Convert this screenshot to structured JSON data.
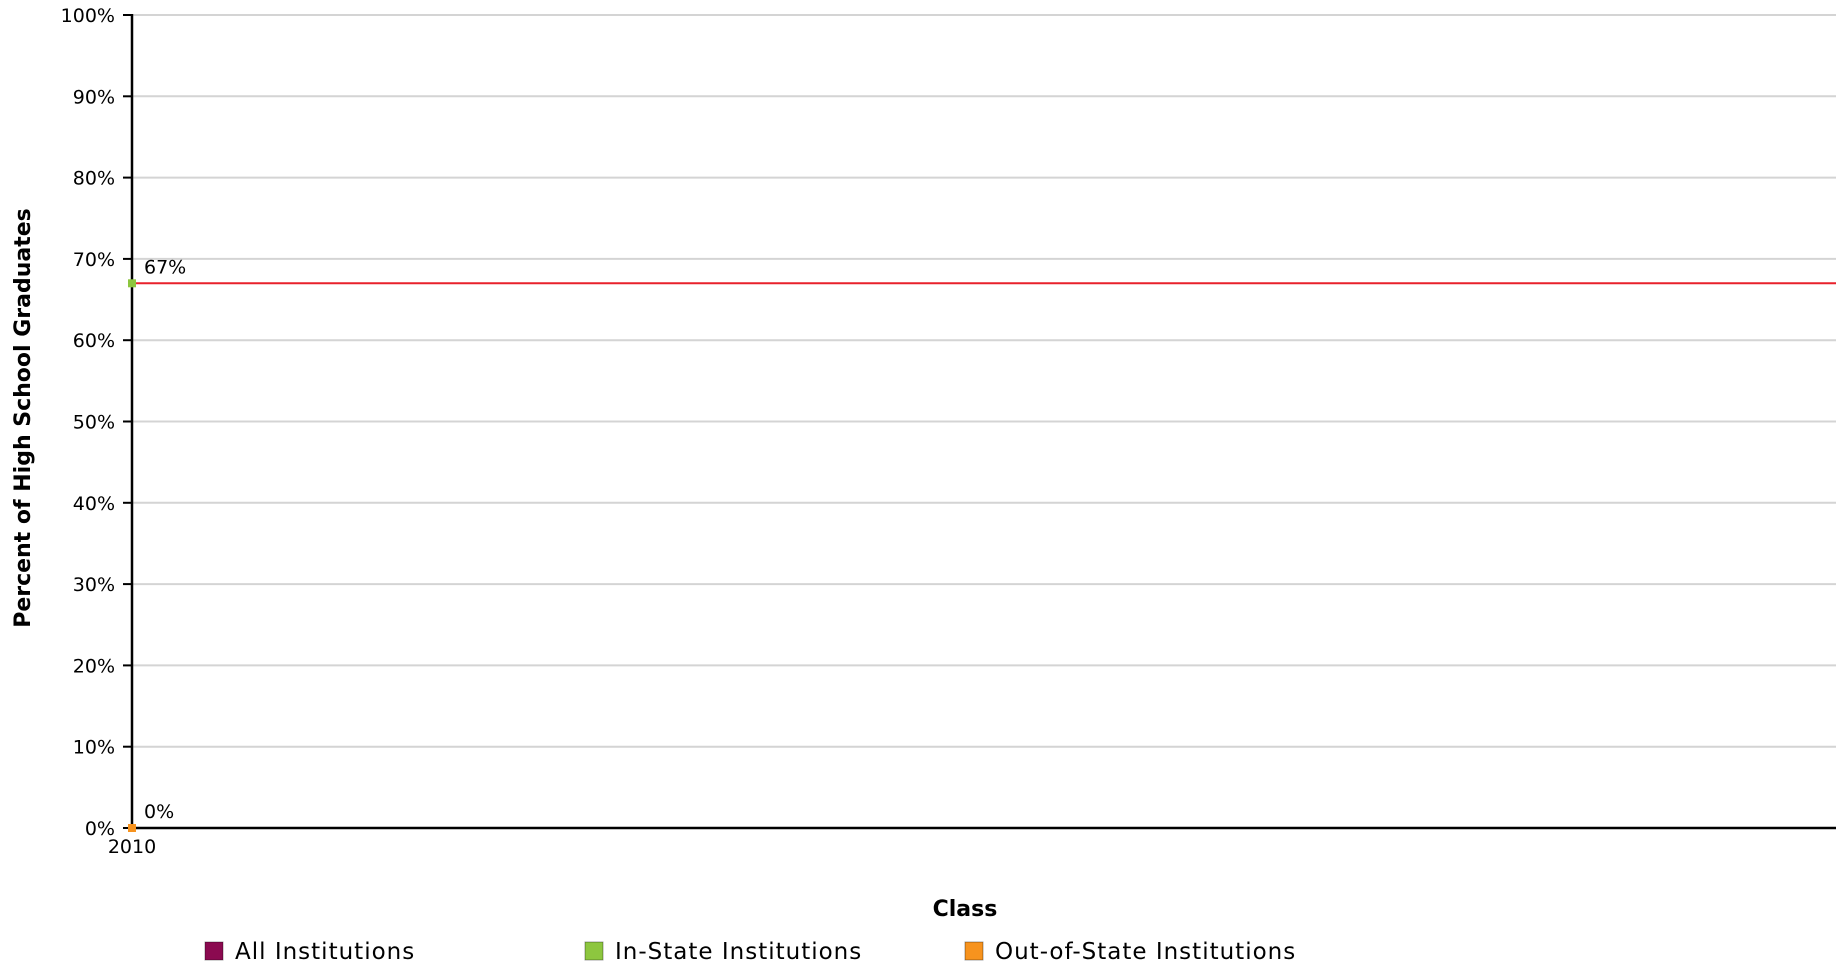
{
  "chart_data": {
    "type": "line",
    "title": "",
    "xlabel": "Class",
    "ylabel": "Percent of High School Graduates",
    "x": [
      "2010"
    ],
    "ylim": [
      0,
      100
    ],
    "y_ticks": [
      "0%",
      "10%",
      "20%",
      "30%",
      "40%",
      "50%",
      "60%",
      "70%",
      "80%",
      "90%",
      "100%"
    ],
    "grid": true,
    "legend_position": "bottom",
    "series": [
      {
        "name": "All Institutions",
        "color": "#8b0a50",
        "values": [
          null
        ]
      },
      {
        "name": "In-State Institutions",
        "color": "#8dc63f",
        "values": [
          67
        ]
      },
      {
        "name": "Out-of-State Institutions",
        "color": "#f7931e",
        "values": [
          0
        ]
      }
    ],
    "data_labels": [
      {
        "series": "In-State Institutions",
        "x": "2010",
        "text": "67%"
      },
      {
        "series": "Out-of-State Institutions",
        "x": "2010",
        "text": "0%"
      }
    ],
    "reference_line": {
      "value": 67,
      "color": "#e8212b"
    }
  }
}
